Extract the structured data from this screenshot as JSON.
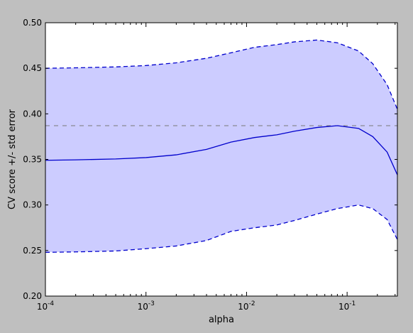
{
  "chart_data": {
    "type": "line",
    "title": "",
    "xlabel": "alpha",
    "ylabel": "CV score +/- std error",
    "xscale": "log",
    "xlim": [
      0.0001,
      0.3162
    ],
    "ylim": [
      0.2,
      0.5
    ],
    "x_ticks": [
      {
        "value": 0.0001,
        "base": "10",
        "exp": "-4"
      },
      {
        "value": 0.001,
        "base": "10",
        "exp": "-3"
      },
      {
        "value": 0.01,
        "base": "10",
        "exp": "-2"
      },
      {
        "value": 0.1,
        "base": "10",
        "exp": "-1"
      }
    ],
    "y_ticks": [
      "0.20",
      "0.25",
      "0.30",
      "0.35",
      "0.40",
      "0.45",
      "0.50"
    ],
    "grid": false,
    "x": [
      0.0001,
      0.0002,
      0.0005,
      0.001,
      0.002,
      0.004,
      0.007,
      0.012,
      0.02,
      0.03,
      0.05,
      0.08,
      0.13,
      0.18,
      0.25,
      0.3162
    ],
    "series": [
      {
        "role": "mean",
        "style": "solid",
        "values": [
          0.349,
          0.3495,
          0.3505,
          0.352,
          0.355,
          0.361,
          0.369,
          0.374,
          0.377,
          0.381,
          0.385,
          0.387,
          0.384,
          0.375,
          0.358,
          0.333
        ]
      },
      {
        "role": "mean_plus_std",
        "style": "dashed",
        "values": [
          0.45,
          0.4505,
          0.4515,
          0.453,
          0.456,
          0.461,
          0.467,
          0.473,
          0.476,
          0.479,
          0.481,
          0.478,
          0.469,
          0.455,
          0.432,
          0.405
        ]
      },
      {
        "role": "mean_minus_std",
        "style": "dashed",
        "values": [
          0.248,
          0.2485,
          0.2495,
          0.252,
          0.255,
          0.261,
          0.271,
          0.275,
          0.278,
          0.283,
          0.29,
          0.296,
          0.3,
          0.296,
          0.284,
          0.262
        ]
      }
    ],
    "max_score_line": {
      "value": 0.387,
      "style": "dashed"
    },
    "colors": {
      "fill": "#ccccff",
      "line": "#0000cc",
      "hline": "#777777",
      "figure_bg": "#bfbfbf",
      "axes_bg": "#ffffff"
    }
  }
}
